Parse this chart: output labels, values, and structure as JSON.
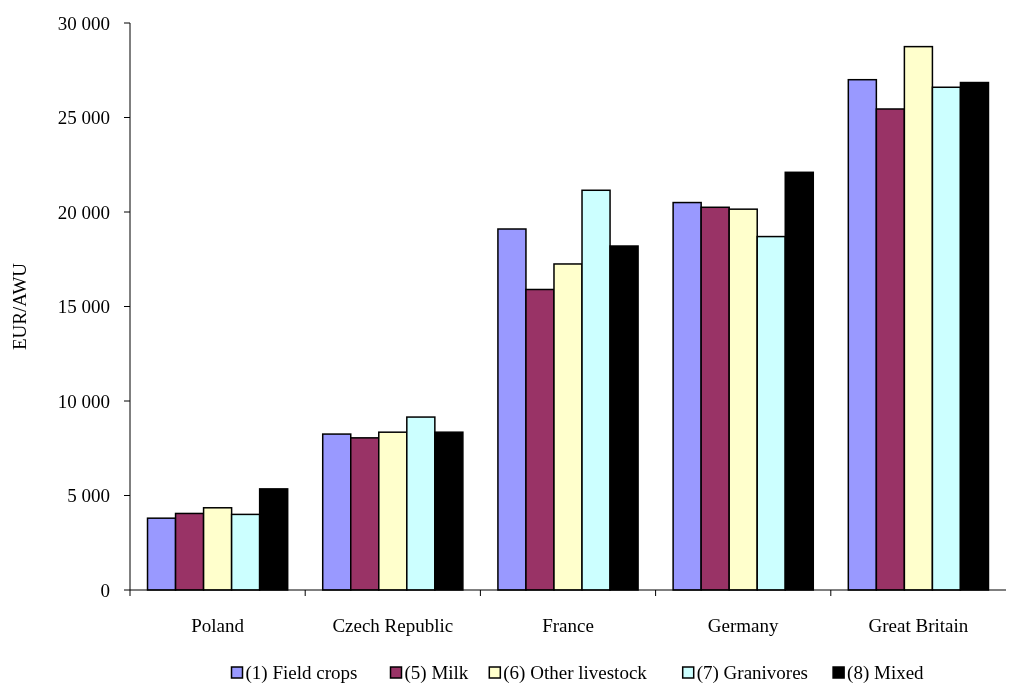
{
  "chart_data": {
    "type": "bar",
    "ylabel": "EUR/AWU",
    "categories": [
      "Poland",
      "Czech Republic",
      "France",
      "Germany",
      "Great Britain"
    ],
    "series": [
      {
        "name": "(1) Field crops",
        "color": "#9999ff",
        "values": [
          3800,
          8250,
          19100,
          20500,
          27000
        ]
      },
      {
        "name": "(5) Milk",
        "color": "#993366",
        "values": [
          4050,
          8050,
          15900,
          20250,
          25450
        ]
      },
      {
        "name": "(6) Other livestock",
        "color": "#ffffcc",
        "values": [
          4350,
          8350,
          17250,
          20150,
          28750
        ]
      },
      {
        "name": "(7) Granivores",
        "color": "#ccffff",
        "values": [
          4000,
          9150,
          21150,
          18700,
          26600
        ]
      },
      {
        "name": "(8) Mixed",
        "color": "#000000",
        "values": [
          5350,
          8350,
          18200,
          22100,
          26850
        ]
      }
    ],
    "ylim": [
      0,
      30000
    ],
    "yticks": [
      {
        "value": 0,
        "label": "0"
      },
      {
        "value": 5000,
        "label": "5 000"
      },
      {
        "value": 10000,
        "label": "10 000"
      },
      {
        "value": 15000,
        "label": "15 000"
      },
      {
        "value": 20000,
        "label": "20 000"
      },
      {
        "value": 25000,
        "label": "25 000"
      },
      {
        "value": 30000,
        "label": "30 000"
      }
    ],
    "legend": "bottom"
  }
}
